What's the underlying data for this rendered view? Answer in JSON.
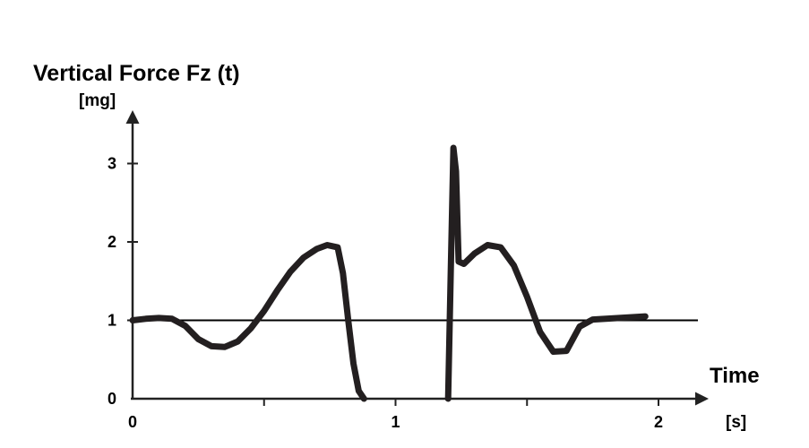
{
  "chart_data": {
    "type": "line",
    "title": "Vertical Force Fz (t)",
    "ylabel": "[mg]",
    "xlabel": "Time",
    "xunit": "[s]",
    "xlim": [
      0,
      2.2
    ],
    "ylim": [
      0,
      3.5
    ],
    "x_ticks": [
      0,
      0.5,
      1,
      1.5,
      2
    ],
    "x_tick_labels": [
      "0",
      "",
      "1",
      "",
      "2"
    ],
    "y_ticks": [
      0,
      1,
      2,
      3
    ],
    "y_tick_labels": [
      "0",
      "1",
      "2",
      "3"
    ],
    "reference_line": {
      "y": 1,
      "x_range": [
        0,
        2.15
      ]
    },
    "grid": false,
    "series": [
      {
        "name": "Fz",
        "segments": [
          {
            "x": [
              0,
              0.05,
              0.1,
              0.15,
              0.2,
              0.25,
              0.3,
              0.35,
              0.4,
              0.45,
              0.5,
              0.55,
              0.6,
              0.65,
              0.7,
              0.74,
              0.78,
              0.8,
              0.82,
              0.84,
              0.86,
              0.88
            ],
            "y": [
              1.0,
              1.02,
              1.03,
              1.02,
              0.93,
              0.76,
              0.67,
              0.66,
              0.73,
              0.9,
              1.12,
              1.38,
              1.62,
              1.8,
              1.91,
              1.96,
              1.93,
              1.6,
              1.0,
              0.45,
              0.1,
              0.0
            ]
          },
          {
            "x": [
              1.2,
              1.21,
              1.22,
              1.23,
              1.24,
              1.26,
              1.3,
              1.35,
              1.4,
              1.45,
              1.5,
              1.55,
              1.6,
              1.65,
              1.7,
              1.75,
              1.85,
              1.95
            ],
            "y": [
              0.0,
              1.6,
              3.2,
              2.9,
              1.75,
              1.72,
              1.85,
              1.96,
              1.93,
              1.7,
              1.3,
              0.85,
              0.6,
              0.61,
              0.92,
              1.01,
              1.03,
              1.05
            ]
          }
        ]
      }
    ]
  }
}
